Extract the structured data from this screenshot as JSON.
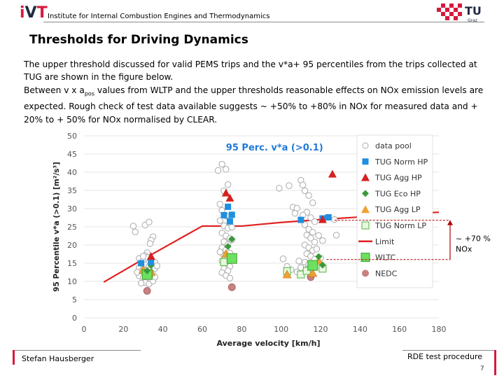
{
  "header": {
    "logo_left": "iVT",
    "institute": "Institute for Internal Combustion Engines and Thermodynamics",
    "logo_right": "TU",
    "logo_right_sub": "Graz"
  },
  "title": "Thresholds for Driving Dynamics",
  "body": {
    "p1": "The upper threshold discussed for valid PEMS trips and the v*a+ 95 percentiles from the trips collected at TUG are shown in the figure below.",
    "p2_pre": "Between v x a",
    "p2_sub": "pos",
    "p2_post": " values from WLTP and the upper thresholds reasonable effects on NOx emission levels are expected. Rough check of test data available suggests ~ +50% to +80% in NOx for measured data and + 20% to + 50% for NOx normalised by CLEAR."
  },
  "chart_data": {
    "type": "scatter",
    "title": "95 Perc. v*a (>0.1)",
    "xlabel": "Average velocity [km/h]",
    "ylabel": "95 Percentile v*a (>0.1)  [m²/s³]",
    "xlim": [
      0,
      180
    ],
    "ylim": [
      0,
      50
    ],
    "xticks": [
      0,
      20,
      40,
      60,
      80,
      100,
      120,
      140,
      160,
      180
    ],
    "yticks": [
      0,
      5,
      10,
      15,
      20,
      25,
      30,
      35,
      40,
      45,
      50
    ],
    "legend_position": "right",
    "annotation": {
      "text_line1": "~ +70 %",
      "text_line2": "NOx",
      "range": [
        16,
        26.8
      ]
    },
    "colors": {
      "pool": "#c8c8c8",
      "norm_hp": "#1f8fe0",
      "agg_hp": "#d62020",
      "eco_hp": "#3a9a3a",
      "agg_lp": "#f0a030",
      "norm_lp": "#a0e090",
      "limit": "#e02020",
      "wltc": "#6ee060",
      "nedc": "#c88080"
    },
    "series": [
      {
        "name": "data pool",
        "points": [
          [
            25,
            25.2
          ],
          [
            26,
            23.6
          ],
          [
            31,
            25.5
          ],
          [
            33,
            26.3
          ],
          [
            35,
            22.3
          ],
          [
            34,
            21.3
          ],
          [
            33.5,
            20.4
          ],
          [
            32,
            17.9
          ],
          [
            31,
            17.1
          ],
          [
            28,
            16.3
          ],
          [
            30,
            15.8
          ],
          [
            32,
            16.6
          ],
          [
            34,
            15.7
          ],
          [
            36,
            15.2
          ],
          [
            29,
            14.8
          ],
          [
            31,
            14.5
          ],
          [
            33,
            14.1
          ],
          [
            28,
            13.8
          ],
          [
            30,
            13.4
          ],
          [
            32,
            13.1
          ],
          [
            34,
            13.2
          ],
          [
            36,
            13.6
          ],
          [
            29,
            12.7
          ],
          [
            31,
            12.3
          ],
          [
            33,
            12.0
          ],
          [
            35,
            11.8
          ],
          [
            28,
            11.5
          ],
          [
            30,
            11.0
          ],
          [
            32,
            10.7
          ],
          [
            34,
            10.3
          ],
          [
            31,
            9.7
          ],
          [
            33,
            9.3
          ],
          [
            35,
            10.1
          ],
          [
            27,
            12.5
          ],
          [
            37,
            14.3
          ],
          [
            29,
            9.5
          ],
          [
            36,
            11.2
          ],
          [
            30,
            16.9
          ],
          [
            68,
            40.5
          ],
          [
            70,
            42.2
          ],
          [
            72,
            40.8
          ],
          [
            73,
            36.6
          ],
          [
            71,
            34.9
          ],
          [
            69,
            31.2
          ],
          [
            70,
            29.5
          ],
          [
            72,
            28.0
          ],
          [
            74,
            26.1
          ],
          [
            71,
            25.3
          ],
          [
            73,
            24.6
          ],
          [
            70,
            23.3
          ],
          [
            72,
            22.5
          ],
          [
            74,
            21.8
          ],
          [
            71,
            20.9
          ],
          [
            73,
            20.1
          ],
          [
            70,
            19.3
          ],
          [
            72,
            18.6
          ],
          [
            74,
            17.8
          ],
          [
            71,
            17.0
          ],
          [
            73,
            16.3
          ],
          [
            70,
            15.6
          ],
          [
            72,
            14.8
          ],
          [
            74,
            14.1
          ],
          [
            71,
            13.5
          ],
          [
            73,
            12.9
          ],
          [
            70,
            12.4
          ],
          [
            72,
            11.6
          ],
          [
            74,
            10.9
          ],
          [
            75,
            21.4
          ],
          [
            69,
            18.1
          ],
          [
            75,
            24.9
          ],
          [
            69,
            26.7
          ],
          [
            99,
            35.6
          ],
          [
            104,
            36.3
          ],
          [
            106,
            30.4
          ],
          [
            108,
            30.1
          ],
          [
            110,
            37.8
          ],
          [
            111,
            36.5
          ],
          [
            112,
            34.9
          ],
          [
            114,
            33.6
          ],
          [
            116,
            31.6
          ],
          [
            113,
            29.0
          ],
          [
            115,
            27.5
          ],
          [
            117,
            26.4
          ],
          [
            112,
            25.6
          ],
          [
            114,
            24.3
          ],
          [
            116,
            23.5
          ],
          [
            113,
            22.7
          ],
          [
            115,
            21.9
          ],
          [
            117,
            20.8
          ],
          [
            112,
            20.0
          ],
          [
            114,
            19.3
          ],
          [
            116,
            18.5
          ],
          [
            113,
            17.6
          ],
          [
            115,
            16.9
          ],
          [
            117,
            16.1
          ],
          [
            112,
            15.3
          ],
          [
            114,
            14.7
          ],
          [
            116,
            14.0
          ],
          [
            113,
            13.3
          ],
          [
            115,
            12.7
          ],
          [
            118,
            18.9
          ],
          [
            121,
            21.2
          ],
          [
            120,
            16.4
          ],
          [
            101,
            16.2
          ],
          [
            103,
            14.1
          ],
          [
            105,
            13.2
          ],
          [
            108,
            12.6
          ],
          [
            110,
            13.8
          ],
          [
            109,
            15.6
          ],
          [
            119,
            22.6
          ],
          [
            111,
            28.2
          ],
          [
            128,
            22.7
          ],
          [
            127,
            27.0
          ],
          [
            107,
            28.7
          ]
        ]
      },
      {
        "name": "TUG Norm HP",
        "points": [
          [
            29,
            15.0
          ],
          [
            34,
            15.3
          ],
          [
            71,
            28.2
          ],
          [
            73,
            30.5
          ],
          [
            75,
            28.3
          ],
          [
            74,
            26.5
          ],
          [
            110,
            26.9
          ],
          [
            121,
            27.3
          ],
          [
            124,
            27.6
          ]
        ]
      },
      {
        "name": "TUG Agg HP",
        "points": [
          [
            34,
            16.9
          ],
          [
            72,
            34.3
          ],
          [
            74,
            32.9
          ],
          [
            121,
            27.0
          ],
          [
            126,
            39.5
          ]
        ]
      },
      {
        "name": "TUG Eco HP",
        "points": [
          [
            32,
            12.9
          ],
          [
            34,
            14.4
          ],
          [
            73,
            19.6
          ],
          [
            75,
            21.6
          ],
          [
            119,
            16.8
          ],
          [
            121,
            14.5
          ]
        ]
      },
      {
        "name": "TUG Agg LP",
        "points": [
          [
            30,
            13.2
          ],
          [
            34,
            12.5
          ],
          [
            72,
            17.6
          ],
          [
            103,
            11.9
          ],
          [
            116,
            12.3
          ],
          [
            119,
            15.7
          ]
        ]
      },
      {
        "name": "TUG Norm LP",
        "points": [
          [
            33,
            12.0
          ],
          [
            71,
            15.3
          ],
          [
            103,
            12.8
          ],
          [
            110,
            11.9
          ],
          [
            113,
            12.9
          ],
          [
            121,
            13.5
          ]
        ]
      },
      {
        "name": "Limit",
        "points": [
          [
            10,
            9.8
          ],
          [
            30,
            16.1
          ],
          [
            60,
            25.2
          ],
          [
            80,
            25.2
          ],
          [
            100,
            26.2
          ],
          [
            120,
            27.0
          ],
          [
            140,
            27.7
          ],
          [
            160,
            28.4
          ],
          [
            180,
            29.0
          ]
        ]
      },
      {
        "name": "WLTC",
        "points": [
          [
            32,
            11.9
          ],
          [
            75,
            16.3
          ],
          [
            116,
            14.4
          ]
        ]
      },
      {
        "name": "NEDC",
        "points": [
          [
            32,
            7.4
          ],
          [
            75,
            8.4
          ],
          [
            115,
            11.2
          ]
        ]
      }
    ]
  },
  "footer": {
    "author": "Stefan Hausberger",
    "topic": "RDE test procedure",
    "page": "7"
  }
}
